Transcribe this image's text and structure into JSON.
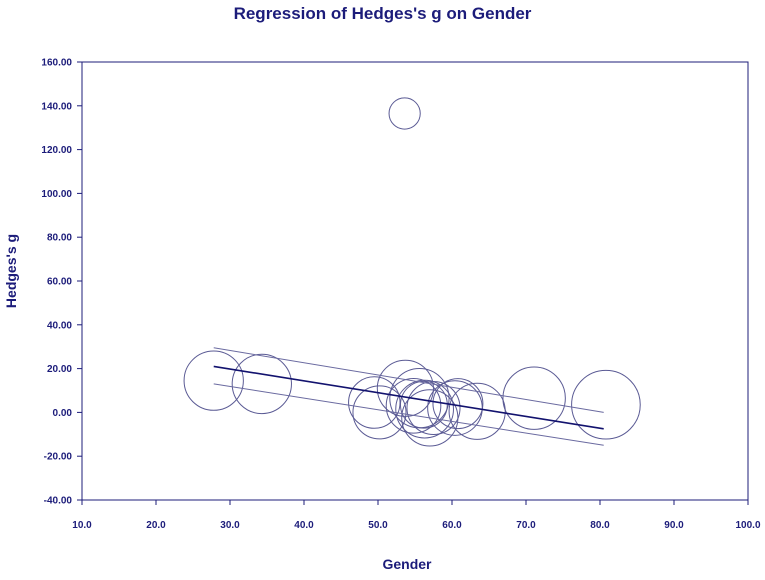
{
  "chart_data": {
    "type": "scatter",
    "title": "Regression of Hedges's g on Gender",
    "xlabel": "Gender",
    "ylabel": "Hedges's g",
    "xlim": [
      10,
      100
    ],
    "ylim": [
      -40,
      160
    ],
    "xticks": [
      "10.0",
      "20.0",
      "30.0",
      "40.0",
      "50.0",
      "60.0",
      "70.0",
      "80.0",
      "90.0",
      "100.0"
    ],
    "yticks": [
      "-40.00",
      "-20.00",
      "0.00",
      "20.00",
      "40.00",
      "60.00",
      "80.00",
      "100.00",
      "120.00",
      "140.00",
      "160.00"
    ],
    "grid": false,
    "points": [
      {
        "x": 27.8,
        "y": 14.5,
        "weight": 3.8
      },
      {
        "x": 34.3,
        "y": 13.0,
        "weight": 3.8
      },
      {
        "x": 49.5,
        "y": 4.5,
        "weight": 3.3
      },
      {
        "x": 50.2,
        "y": 0.0,
        "weight": 3.4
      },
      {
        "x": 53.6,
        "y": 136.5,
        "weight": 2.0
      },
      {
        "x": 53.7,
        "y": 11.0,
        "weight": 3.6
      },
      {
        "x": 54.8,
        "y": 3.0,
        "weight": 3.5
      },
      {
        "x": 55.6,
        "y": 6.5,
        "weight": 3.8
      },
      {
        "x": 56.3,
        "y": 1.5,
        "weight": 3.7
      },
      {
        "x": 57.0,
        "y": -2.5,
        "weight": 3.6
      },
      {
        "x": 56.2,
        "y": 3.5,
        "weight": 3.0
      },
      {
        "x": 57.5,
        "y": 2.0,
        "weight": 3.4
      },
      {
        "x": 60.4,
        "y": 2.0,
        "weight": 3.5
      },
      {
        "x": 60.8,
        "y": 4.0,
        "weight": 3.2
      },
      {
        "x": 63.4,
        "y": 0.5,
        "weight": 3.6
      },
      {
        "x": 71.1,
        "y": 6.5,
        "weight": 4.0
      },
      {
        "x": 80.8,
        "y": 3.5,
        "weight": 4.4
      }
    ],
    "regression": {
      "x": [
        27.8,
        80.5
      ],
      "y": [
        21.0,
        -7.5
      ]
    },
    "ci_upper": {
      "x": [
        27.8,
        80.5
      ],
      "y": [
        29.5,
        0.0
      ]
    },
    "ci_lower": {
      "x": [
        27.8,
        80.5
      ],
      "y": [
        13.0,
        -15.0
      ]
    },
    "colors": {
      "text": "#1c1c7a",
      "circle": "#5a5a94",
      "regression": "#12126e",
      "ci": "#6a6aa0",
      "axis": "#1c1c7a"
    }
  }
}
